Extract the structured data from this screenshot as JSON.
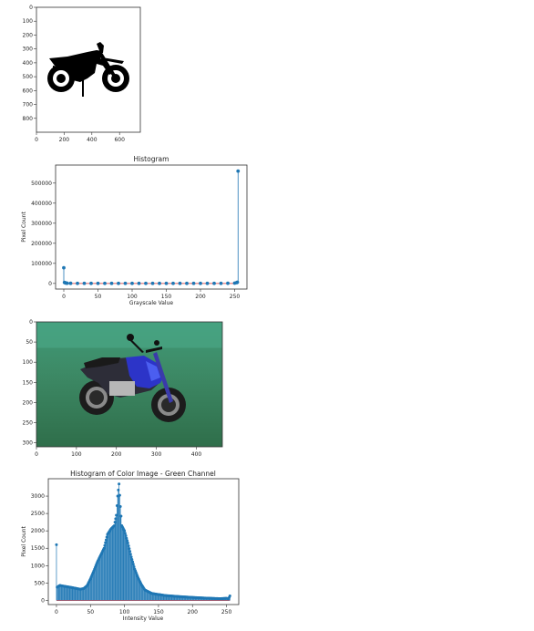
{
  "chart_data": [
    {
      "type": "image",
      "description": "grayscale silhouette image",
      "xticks": [
        0,
        200,
        400,
        600
      ],
      "yticks": [
        0,
        100,
        200,
        300,
        400,
        500,
        600,
        700,
        800
      ],
      "xlim": [
        0,
        750
      ],
      "ylim": [
        0,
        900
      ]
    },
    {
      "type": "stem",
      "title": "Histogram",
      "xlabel": "Grayscale Value",
      "ylabel": "Pixel Count",
      "xticks": [
        0,
        50,
        100,
        150,
        200,
        250
      ],
      "yticks": [
        0,
        100000,
        200000,
        300000,
        400000,
        500000
      ],
      "xlim": [
        -12,
        268
      ],
      "ylim": [
        -28000,
        590000
      ],
      "series": [
        {
          "x": [
            0,
            1,
            2,
            3,
            4,
            5,
            10,
            20,
            30,
            40,
            50,
            60,
            70,
            80,
            90,
            100,
            110,
            120,
            130,
            140,
            150,
            160,
            170,
            180,
            190,
            200,
            210,
            220,
            230,
            240,
            250,
            253,
            254,
            255
          ],
          "values": [
            78000,
            5000,
            3000,
            2000,
            1500,
            1000,
            600,
            500,
            500,
            500,
            500,
            500,
            500,
            500,
            500,
            500,
            500,
            500,
            500,
            500,
            500,
            500,
            500,
            500,
            500,
            500,
            500,
            500,
            500,
            700,
            1500,
            4000,
            6000,
            560000
          ]
        }
      ]
    },
    {
      "type": "image",
      "description": "color photo of a blue motorcycle on grass",
      "xticks": [
        0,
        100,
        200,
        300,
        400
      ],
      "yticks": [
        0,
        50,
        100,
        150,
        200,
        250,
        300
      ],
      "xlim": [
        0,
        465
      ],
      "ylim": [
        0,
        310
      ]
    },
    {
      "type": "stem",
      "title": "Histogram of Color Image - Green Channel",
      "xlabel": "Intensity Value",
      "ylabel": "Pixel Count",
      "xticks": [
        0,
        50,
        100,
        150,
        200,
        250
      ],
      "yticks": [
        0,
        500,
        1000,
        1500,
        2000,
        2500,
        3000
      ],
      "xlim": [
        -12,
        268
      ],
      "ylim": [
        -120,
        3500
      ],
      "keypoints": [
        [
          0,
          1600
        ],
        [
          1,
          380
        ],
        [
          5,
          430
        ],
        [
          10,
          410
        ],
        [
          20,
          380
        ],
        [
          30,
          340
        ],
        [
          35,
          320
        ],
        [
          40,
          340
        ],
        [
          45,
          420
        ],
        [
          50,
          620
        ],
        [
          55,
          850
        ],
        [
          60,
          1100
        ],
        [
          65,
          1300
        ],
        [
          70,
          1500
        ],
        [
          75,
          1900
        ],
        [
          80,
          2050
        ],
        [
          85,
          2150
        ],
        [
          88,
          2450
        ],
        [
          90,
          3000
        ],
        [
          92,
          3350
        ],
        [
          94,
          2700
        ],
        [
          96,
          2150
        ],
        [
          100,
          2000
        ],
        [
          105,
          1650
        ],
        [
          110,
          1250
        ],
        [
          115,
          900
        ],
        [
          120,
          650
        ],
        [
          125,
          450
        ],
        [
          130,
          300
        ],
        [
          140,
          200
        ],
        [
          150,
          170
        ],
        [
          160,
          140
        ],
        [
          180,
          110
        ],
        [
          200,
          85
        ],
        [
          220,
          65
        ],
        [
          240,
          50
        ],
        [
          250,
          60
        ],
        [
          253,
          40
        ],
        [
          255,
          130
        ]
      ]
    }
  ]
}
